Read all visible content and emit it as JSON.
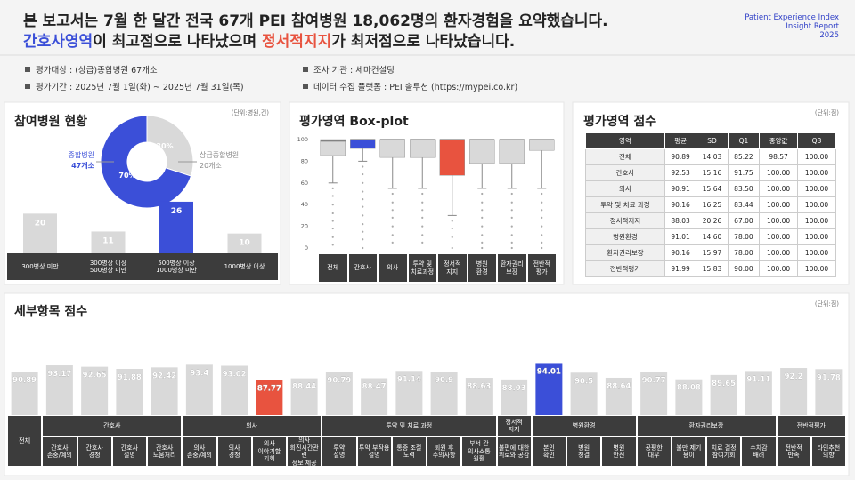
{
  "header": {
    "title_line1": "본 보고서는 7월 한 달간 전국 67개 PEI 참여병원 18,062명의 환자경험을 요약했습니다.",
    "title_line2": [
      "간호사영역",
      "이 최고점으로 나타났으며 ",
      "정서적지지",
      "가 최저점으로 나타났습니다."
    ],
    "brand": [
      "Patient Experience Index",
      "Insight Report",
      "2025"
    ]
  },
  "info": [
    "평가대상 : (상급)종합병원 67개소",
    "조사 기관 : 세마컨설팅",
    "평가기간 : 2025년 7월 1일(화) ~ 2025년 7월 31일(목)",
    "데이터 수집 플랫폼 : PEI 솔루션 (https://mypei.co.kr)"
  ],
  "chart_data": [
    {
      "type": "pie",
      "title": "참여병원 현황",
      "unit": "(단위:병원,건)",
      "categories": [
        "상급종합병원",
        "종합병원"
      ],
      "values": [
        30,
        70
      ],
      "value_labels": [
        "30%",
        "70%"
      ],
      "callouts": [
        "20개소",
        "47개소"
      ],
      "colors": [
        "#d9d9d9",
        "#3b4fd8"
      ]
    },
    {
      "type": "bar",
      "categories": [
        "300병상 미만",
        "300병상 이상\n500병상 미만",
        "500병상 이상\n1000병상 미만",
        "1000병상 이상"
      ],
      "values": [
        20,
        11,
        26,
        10
      ],
      "colors": [
        "#d9d9d9",
        "#d9d9d9",
        "#3b4fd8",
        "#d9d9d9"
      ],
      "ylim": [
        0,
        30
      ]
    },
    {
      "type": "box",
      "title": "평가영역 Box-plot",
      "categories": [
        "전체",
        "간호사",
        "의사",
        "투약 및\n치료과정",
        "정서적\n지지",
        "병원\n환경",
        "환자권리\n보장",
        "전반적\n평가"
      ],
      "q1": [
        85.22,
        91.75,
        83.5,
        83.44,
        67,
        78,
        78,
        90
      ],
      "median": [
        98.57,
        100,
        100,
        100,
        100,
        100,
        100,
        100
      ],
      "q3": [
        100,
        100,
        100,
        100,
        100,
        100,
        100,
        100
      ],
      "whisker_low": [
        60,
        80,
        55,
        55,
        30,
        55,
        55,
        55
      ],
      "whisker_high": [
        100,
        100,
        100,
        100,
        100,
        100,
        100,
        100
      ],
      "outliers": [
        [
          55,
          48,
          40,
          32,
          25,
          18,
          10,
          3
        ],
        [
          75,
          68,
          60,
          52,
          45,
          38,
          30,
          22,
          15,
          8,
          0
        ],
        [
          50,
          42,
          35,
          28,
          20,
          12,
          5
        ],
        [
          50,
          42,
          35,
          28,
          20,
          12,
          5
        ],
        [
          25,
          18,
          10,
          0
        ],
        [
          50,
          42,
          35,
          28,
          20,
          12,
          5,
          0
        ],
        [
          50,
          42,
          35,
          28,
          20,
          12,
          5,
          0
        ],
        [
          50,
          42,
          35,
          28,
          20,
          12,
          5,
          0
        ]
      ],
      "colors": [
        "#d9d9d9",
        "#3b4fd8",
        "#d9d9d9",
        "#d9d9d9",
        "#e8533f",
        "#d9d9d9",
        "#d9d9d9",
        "#d9d9d9"
      ],
      "ylim": [
        0,
        100
      ],
      "yticks": [
        0,
        20,
        40,
        60,
        80,
        100
      ]
    },
    {
      "type": "grouped-bar",
      "title": "세부항목 점수",
      "unit": "(단위:점)",
      "ylim": [
        75,
        100
      ],
      "groups": [
        {
          "categories": [
            "전체"
          ],
          "values": [
            90.89
          ],
          "colors": [
            "#d9d9d9"
          ]
        },
        {
          "name": "간호사",
          "categories": [
            "간호사\n존중/예의",
            "간호사\n경청",
            "간호사\n설명",
            "간호사\n도움처리"
          ],
          "values": [
            93.17,
            92.65,
            91.88,
            92.42
          ],
          "colors": [
            "#d9d9d9",
            "#d9d9d9",
            "#d9d9d9",
            "#d9d9d9"
          ]
        },
        {
          "name": "의사",
          "categories": [
            "의사\n존중/예의",
            "의사\n경청",
            "의사\n이야기할\n기회",
            "의사\n회진시간관련\n정보 제공"
          ],
          "values": [
            93.4,
            93.02,
            87.77,
            88.44
          ],
          "colors": [
            "#d9d9d9",
            "#d9d9d9",
            "#e8533f",
            "#d9d9d9"
          ]
        },
        {
          "name": "투약 및 치료 과정",
          "categories": [
            "투약\n설명",
            "투약 부작용\n설명",
            "통증 조절\n노력",
            "퇴원 후\n주의사항",
            "부서 간\n의사소통\n원활"
          ],
          "values": [
            90.79,
            88.47,
            91.14,
            90.9,
            88.63
          ],
          "colors": [
            "#d9d9d9",
            "#d9d9d9",
            "#d9d9d9",
            "#d9d9d9",
            "#d9d9d9"
          ]
        },
        {
          "name": "정서적\n지지",
          "categories": [
            "불편에 대한\n위로와 공감"
          ],
          "values": [
            88.03
          ],
          "colors": [
            "#d9d9d9"
          ]
        },
        {
          "name": "병원환경",
          "categories": [
            "본인\n확인",
            "병원\n청결",
            "병원\n안전"
          ],
          "values": [
            94.01,
            90.5,
            88.64
          ],
          "colors": [
            "#3b4fd8",
            "#d9d9d9",
            "#d9d9d9"
          ]
        },
        {
          "name": "환자권리보장",
          "categories": [
            "공평한\n대우",
            "불만 제기\n용이",
            "치료 결정\n참여기회",
            "수치감\n배려"
          ],
          "values": [
            90.77,
            88.08,
            89.65,
            91.11
          ],
          "colors": [
            "#d9d9d9",
            "#d9d9d9",
            "#d9d9d9",
            "#d9d9d9"
          ]
        },
        {
          "name": "전반적평가",
          "categories": [
            "전반적\n만족",
            "타인추천\n의향"
          ],
          "values": [
            92.2,
            91.78
          ],
          "colors": [
            "#d9d9d9",
            "#d9d9d9"
          ]
        }
      ]
    }
  ],
  "score_table": {
    "title": "평가영역 점수",
    "unit": "(단위:점)",
    "columns": [
      "영역",
      "평균",
      "SD",
      "Q1",
      "중앙값",
      "Q3"
    ],
    "rows": [
      [
        "전체",
        "90.89",
        "14.03",
        "85.22",
        "98.57",
        "100.00"
      ],
      [
        "간호사",
        "92.53",
        "15.16",
        "91.75",
        "100.00",
        "100.00"
      ],
      [
        "의사",
        "90.91",
        "15.64",
        "83.50",
        "100.00",
        "100.00"
      ],
      [
        "투약 및 치료 과정",
        "90.16",
        "16.25",
        "83.44",
        "100.00",
        "100.00"
      ],
      [
        "정서적지지",
        "88.03",
        "20.26",
        "67.00",
        "100.00",
        "100.00"
      ],
      [
        "병원환경",
        "91.01",
        "14.60",
        "78.00",
        "100.00",
        "100.00"
      ],
      [
        "환자권리보장",
        "90.16",
        "15.97",
        "78.00",
        "100.00",
        "100.00"
      ],
      [
        "전반적평가",
        "91.99",
        "15.83",
        "90.00",
        "100.00",
        "100.00"
      ]
    ]
  }
}
